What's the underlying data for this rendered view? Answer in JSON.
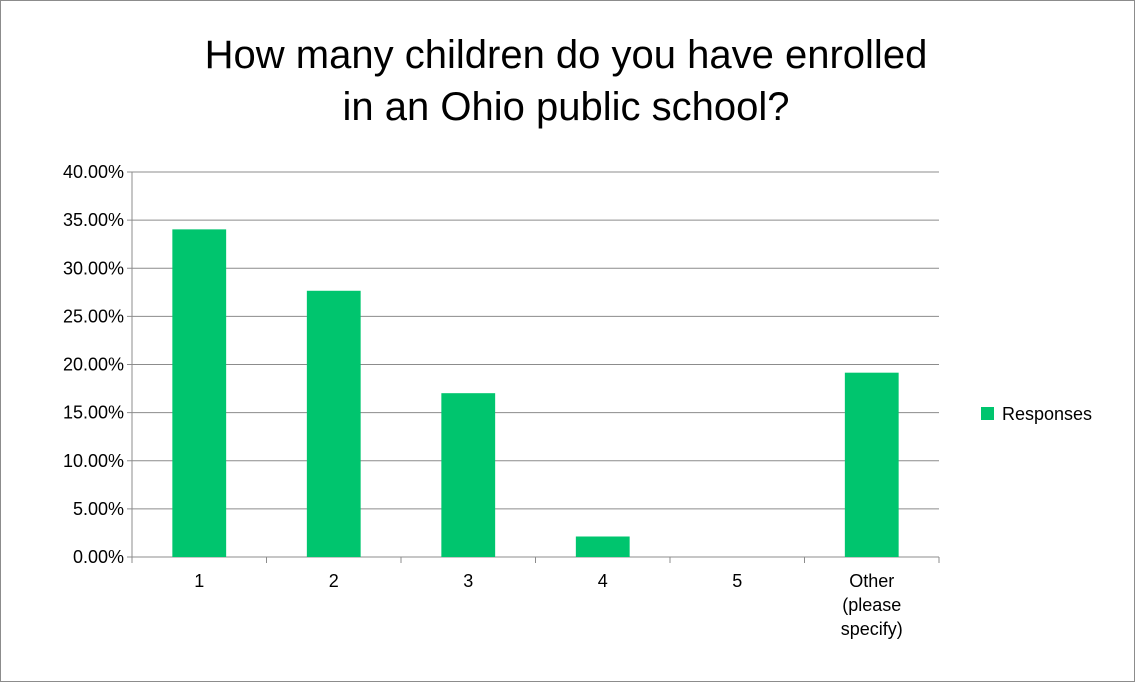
{
  "chart_data": {
    "type": "bar",
    "title": "How many children do you have enrolled\nin an Ohio public school?",
    "categories": [
      "1",
      "2",
      "3",
      "4",
      "5",
      "Other\n(please\nspecify)"
    ],
    "series": [
      {
        "name": "Responses",
        "values": [
          34.04,
          27.66,
          17.02,
          2.13,
          0.0,
          19.15
        ],
        "color": "#00c56e"
      }
    ],
    "ylim": [
      0,
      40
    ],
    "yticks": [
      0,
      5,
      10,
      15,
      20,
      25,
      30,
      35,
      40
    ],
    "ytick_labels": [
      "0.00%",
      "5.00%",
      "10.00%",
      "15.00%",
      "20.00%",
      "25.00%",
      "30.00%",
      "35.00%",
      "40.00%"
    ],
    "grid": true,
    "legend_position": "right"
  }
}
